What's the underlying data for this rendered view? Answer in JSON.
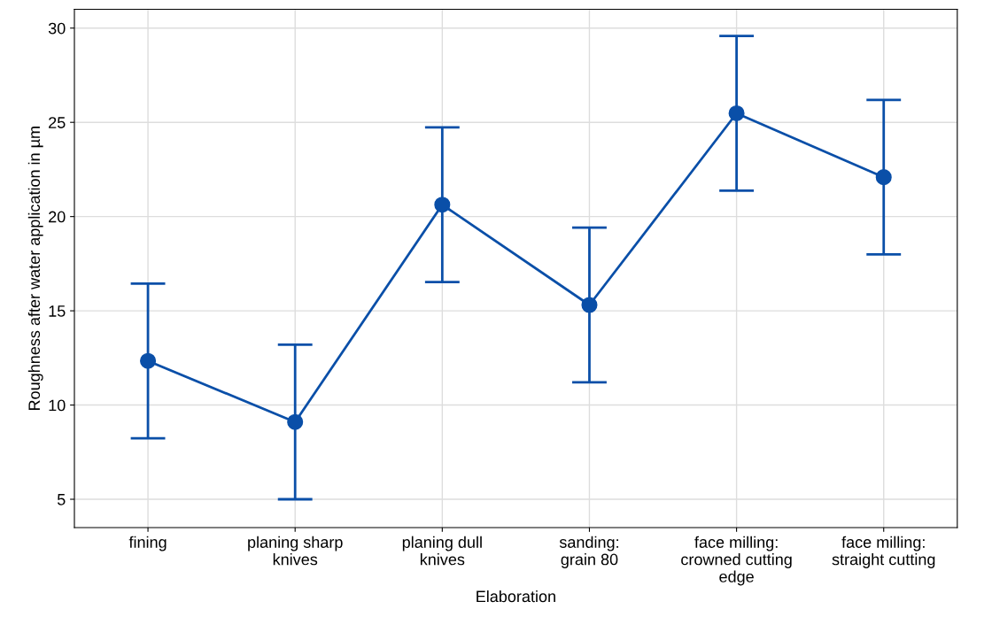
{
  "chart_data": {
    "type": "line",
    "xlabel": "Elaboration",
    "ylabel": "Roughness after water application in µm",
    "categories": [
      "fining",
      "planing sharp\nknives",
      "planing dull\nknives",
      "sanding:\ngrain 80",
      "face milling:\ncrowned cutting\nedge",
      "face milling:\nstraight cutting"
    ],
    "series": [
      {
        "color": "#0a4fa8",
        "values": [
          12.34,
          9.1,
          20.63,
          15.31,
          25.48,
          22.09
        ],
        "errors": [
          4.1,
          4.1,
          4.1,
          4.1,
          4.1,
          4.1
        ]
      }
    ],
    "ylim": [
      3.5,
      31
    ],
    "yticks": [
      5,
      10,
      15,
      20,
      25,
      30
    ],
    "grid": true,
    "marker": "circle",
    "line_style": "solid"
  }
}
